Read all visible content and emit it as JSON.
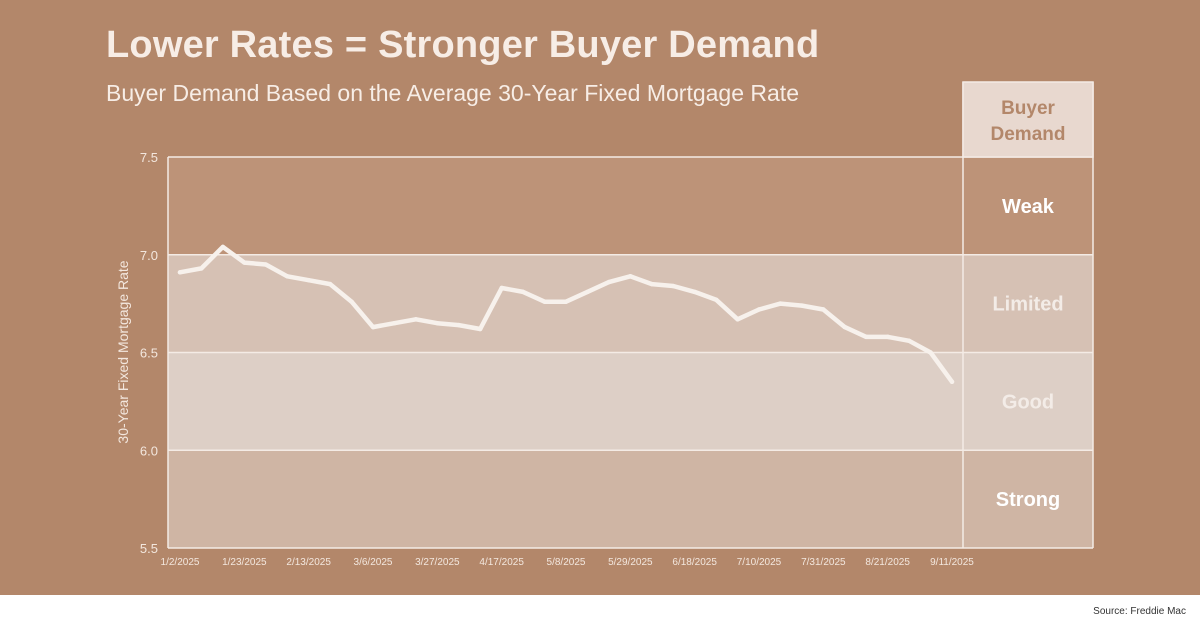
{
  "title": "Lower Rates = Stronger Buyer Demand",
  "subtitle": "Buyer Demand Based on the Average 30-Year Fixed Mortgage Rate",
  "source": "Source: Freddie Mac",
  "colors": {
    "background": "#b3876a",
    "line": "#f7f1ec",
    "header_fill": "#e8d8cf",
    "header_text": "#b3876a",
    "band_text": "#ffffff"
  },
  "chart_data": {
    "type": "line",
    "title": "",
    "xlabel": "",
    "ylabel": "30-Year Fixed Mortgage Rate",
    "ylim": [
      5.5,
      7.5
    ],
    "yticks": [
      "5.5",
      "6.0",
      "6.5",
      "7.0",
      "7.5"
    ],
    "grid": true,
    "x_tick_labels": [
      "1/2/2025",
      "1/23/2025",
      "2/13/2025",
      "3/6/2025",
      "3/27/2025",
      "4/17/2025",
      "5/8/2025",
      "5/29/2025",
      "6/18/2025",
      "7/10/2025",
      "7/31/2025",
      "8/21/2025",
      "9/11/2025"
    ],
    "series": [
      {
        "values": [
          6.91,
          6.93,
          7.04,
          6.96,
          6.95,
          6.89,
          6.87,
          6.85,
          6.76,
          6.63,
          6.65,
          6.67,
          6.65,
          6.64,
          6.62,
          6.83,
          6.81,
          6.76,
          6.76,
          6.81,
          6.86,
          6.89,
          6.85,
          6.84,
          6.81,
          6.77,
          6.67,
          6.72,
          6.75,
          6.74,
          6.72,
          6.63,
          6.58,
          6.58,
          6.56,
          6.5,
          6.35
        ]
      }
    ],
    "legend": {
      "header": [
        "Buyer",
        "Demand"
      ],
      "bands": [
        {
          "label": "Weak",
          "from": 7.0,
          "to": 7.5,
          "fill": "#bd9378",
          "text": "#ffffff"
        },
        {
          "label": "Limited",
          "from": 6.5,
          "to": 7.0,
          "fill": "#d6c1b4",
          "text": "#f3ece7"
        },
        {
          "label": "Good",
          "from": 6.0,
          "to": 6.5,
          "fill": "#ddcfc6",
          "text": "#f3ece7"
        },
        {
          "label": "Strong",
          "from": 5.5,
          "to": 6.0,
          "fill": "#cfb5a4",
          "text": "#ffffff"
        }
      ]
    }
  }
}
